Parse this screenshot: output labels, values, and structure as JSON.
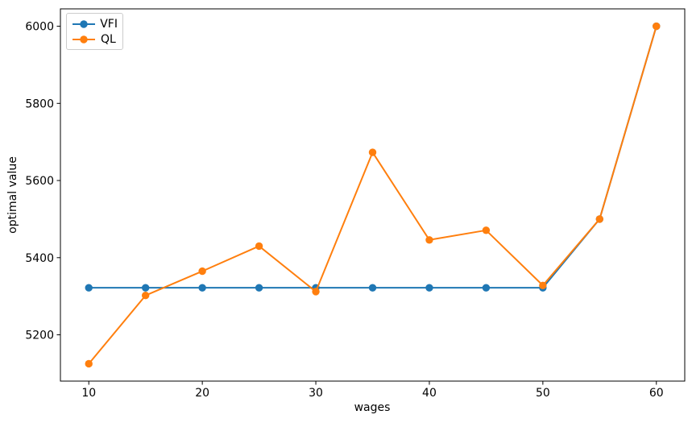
{
  "figure": {
    "background": "#ffffff",
    "text_color": "#000000"
  },
  "chart_data": {
    "type": "line",
    "title": "",
    "xlabel": "wages",
    "ylabel": "optimal value",
    "x": [
      10,
      15,
      20,
      25,
      30,
      35,
      40,
      45,
      50,
      55,
      60
    ],
    "series": [
      {
        "name": "VFI",
        "color": "#1f77b4",
        "marker": "circle",
        "values": [
          5322,
          5322,
          5322,
          5322,
          5322,
          5322,
          5322,
          5322,
          5322,
          5500,
          6000
        ]
      },
      {
        "name": "QL",
        "color": "#ff7f0e",
        "marker": "circle",
        "values": [
          5125,
          5302,
          5365,
          5430,
          5312,
          5673,
          5446,
          5471,
          5328,
          5500,
          6000
        ]
      }
    ],
    "xlim": [
      7.5,
      62.5
    ],
    "ylim": [
      5080,
      6045
    ],
    "xticks": [
      10,
      20,
      30,
      40,
      50,
      60
    ],
    "yticks": [
      5200,
      5400,
      5600,
      5800,
      6000
    ],
    "grid": false,
    "legend": {
      "position": "upper-left",
      "entries": [
        "VFI",
        "QL"
      ]
    }
  }
}
